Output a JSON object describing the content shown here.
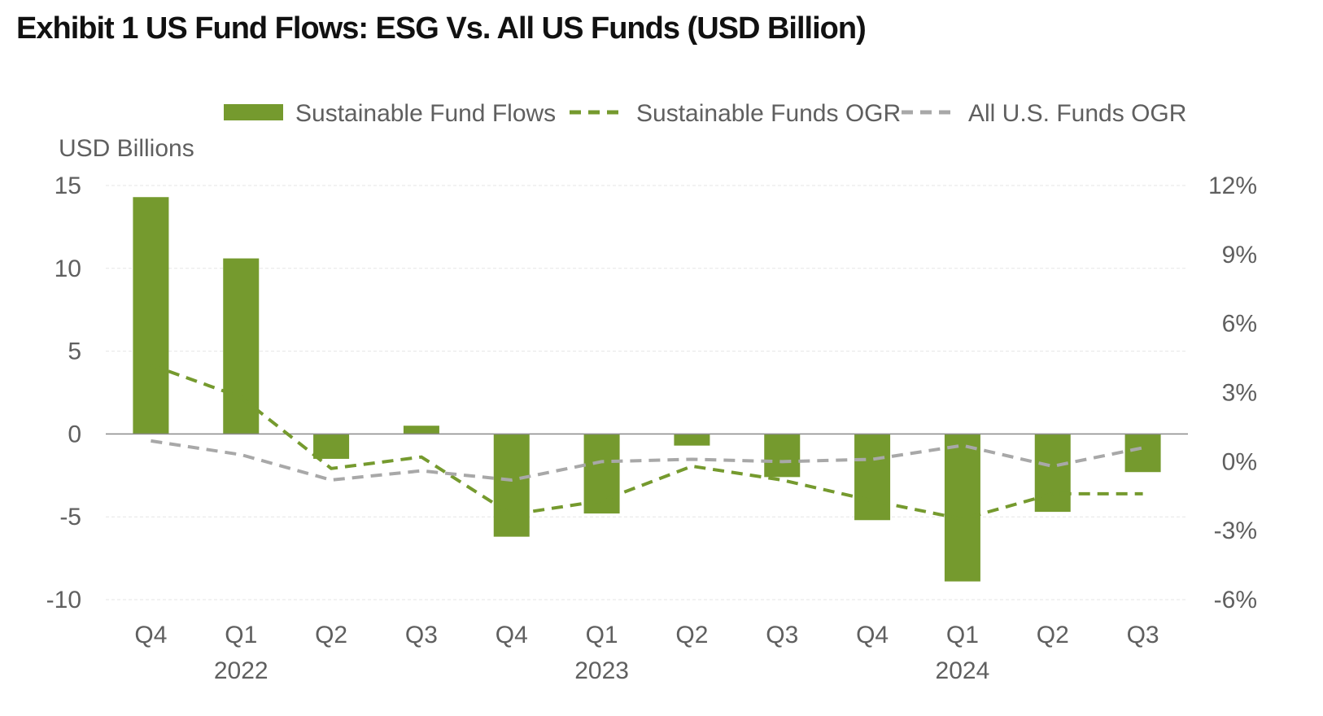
{
  "title": "Exhibit 1 US Fund Flows: ESG Vs. All US Funds (USD Billion)",
  "chart_data": {
    "type": "bar",
    "title": "Exhibit 1 US Fund Flows: ESG Vs. All US Funds (USD Billion)",
    "ylabel": "USD Billions",
    "categories": [
      "Q4",
      "Q1",
      "Q2",
      "Q3",
      "Q4",
      "Q1",
      "Q2",
      "Q3",
      "Q4",
      "Q1",
      "Q2",
      "Q3"
    ],
    "year_labels": [
      {
        "label": "2022",
        "category_index": 1
      },
      {
        "label": "2023",
        "category_index": 5
      },
      {
        "label": "2024",
        "category_index": 9
      }
    ],
    "ylim_left": [
      -10,
      15
    ],
    "yticks_left": [
      "15",
      "10",
      "5",
      "0",
      "-5",
      "-10"
    ],
    "yticks_left_values": [
      15,
      10,
      5,
      0,
      -5,
      -10
    ],
    "ylim_right": [
      -6,
      12
    ],
    "yticks_right": [
      "12%",
      "9%",
      "6%",
      "3%",
      "0%",
      "-3%",
      "-6%"
    ],
    "yticks_right_values": [
      12,
      9,
      6,
      3,
      0,
      -3,
      -6
    ],
    "legend_position": "top",
    "grid": true,
    "series": [
      {
        "name": "Sustainable Fund Flows",
        "kind": "bar",
        "axis": "left",
        "color": "#759a2e",
        "values": [
          14.3,
          10.6,
          -1.5,
          0.5,
          -6.2,
          -4.8,
          -0.7,
          -2.6,
          -5.2,
          -8.9,
          -4.7,
          -2.3
        ]
      },
      {
        "name": "Sustainable Funds OGR",
        "kind": "dashed-line",
        "axis": "right",
        "color": "#759a2e",
        "values": [
          4.2,
          2.8,
          -0.3,
          0.2,
          -2.3,
          -1.7,
          -0.2,
          -0.8,
          -1.7,
          -2.5,
          -1.4,
          -1.4
        ]
      },
      {
        "name": "All U.S. Funds OGR",
        "kind": "dashed-line",
        "axis": "right",
        "color": "#a8a8a8",
        "values": [
          0.9,
          0.3,
          -0.8,
          -0.4,
          -0.8,
          0.0,
          0.1,
          0.0,
          0.1,
          0.7,
          -0.2,
          0.6
        ]
      }
    ]
  }
}
